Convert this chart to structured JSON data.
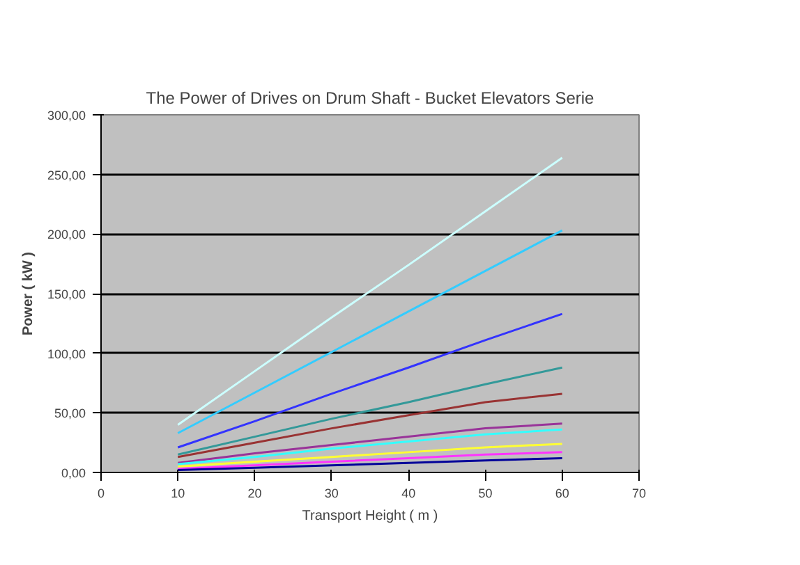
{
  "chart_data": {
    "type": "line",
    "title": "The Power of Drives on Drum Shaft - Bucket Elevators Serie",
    "xlabel": "Transport Height ( m )",
    "ylabel": "Power ( kW )",
    "x": [
      10,
      20,
      30,
      40,
      50,
      60
    ],
    "series": [
      {
        "color": "#ccffff",
        "values": [
          40,
          85,
          130,
          174,
          219,
          264
        ]
      },
      {
        "color": "#33ccff",
        "values": [
          33,
          67,
          101,
          135,
          169,
          203
        ]
      },
      {
        "color": "#3333ff",
        "values": [
          21,
          43,
          66,
          88,
          111,
          133
        ]
      },
      {
        "color": "#339999",
        "values": [
          15,
          30,
          45,
          59,
          74,
          88
        ]
      },
      {
        "color": "#993333",
        "values": [
          13,
          25,
          37,
          48,
          59,
          66
        ]
      },
      {
        "color": "#993399",
        "values": [
          8,
          16,
          23,
          30,
          37,
          41
        ]
      },
      {
        "color": "#33ffff",
        "values": [
          7,
          13,
          20,
          26,
          32,
          36
        ]
      },
      {
        "color": "#ffff33",
        "values": [
          5,
          9,
          13,
          17,
          21,
          24
        ]
      },
      {
        "color": "#ff33ff",
        "values": [
          3,
          6,
          9,
          12,
          15,
          17
        ]
      },
      {
        "color": "#000099",
        "values": [
          2,
          4,
          6,
          8,
          10,
          12
        ]
      }
    ],
    "xlim": [
      0,
      70
    ],
    "xticks": [
      0,
      10,
      20,
      30,
      40,
      50,
      60,
      70
    ],
    "ylim": [
      0,
      300
    ],
    "yticks": [
      {
        "value": 0,
        "label": "0,00"
      },
      {
        "value": 50,
        "label": "50,00"
      },
      {
        "value": 100,
        "label": "100,00"
      },
      {
        "value": 150,
        "label": "150,00"
      },
      {
        "value": 200,
        "label": "200,00"
      },
      {
        "value": 250,
        "label": "250,00"
      },
      {
        "value": 300,
        "label": "300,00"
      }
    ],
    "grid": "y",
    "marker": "none",
    "line_style": "solid"
  }
}
